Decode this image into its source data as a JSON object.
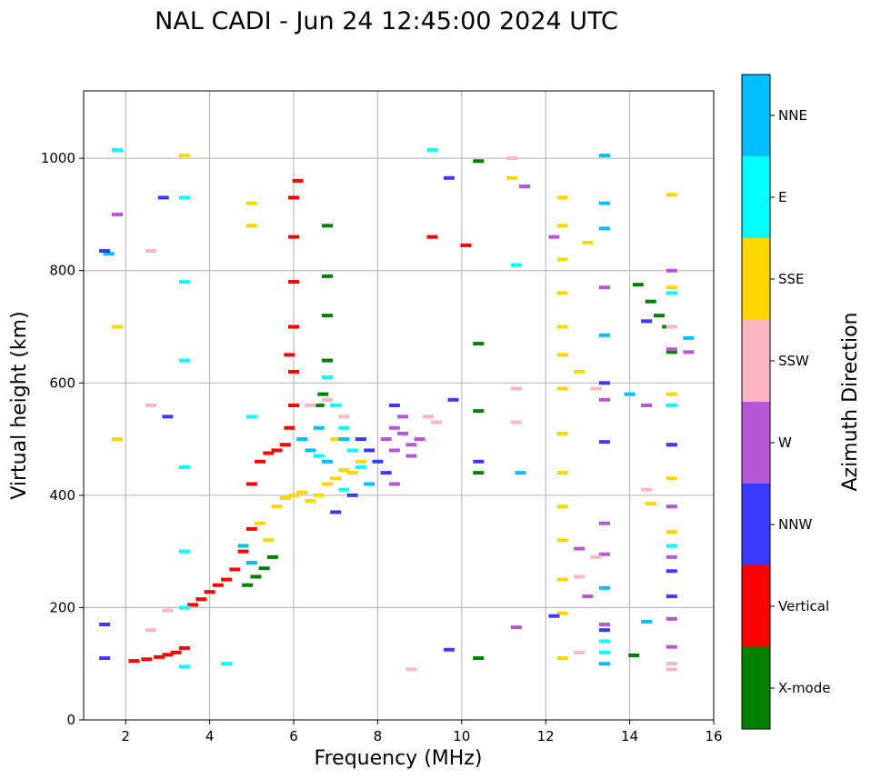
{
  "chart_data": {
    "type": "scatter",
    "title": "NAL CADI - Jun 24 12:45:00 2024 UTC",
    "xlabel": "Frequency (MHz)",
    "ylabel": "Virtual height (km)",
    "xlim": [
      1,
      16
    ],
    "ylim": [
      0,
      1120
    ],
    "xticks": [
      2,
      4,
      6,
      8,
      10,
      12,
      14,
      16
    ],
    "yticks": [
      0,
      200,
      400,
      600,
      800,
      1000
    ],
    "grid": true,
    "colorbar": {
      "label": "Azimuth Direction",
      "position": "right",
      "categories": [
        {
          "name": "X-mode",
          "color": "#008000"
        },
        {
          "name": "Vertical",
          "color": "#ff0000"
        },
        {
          "name": "NNW",
          "color": "#3a3aff"
        },
        {
          "name": "W",
          "color": "#b657d6"
        },
        {
          "name": "SSW",
          "color": "#ffb6c1"
        },
        {
          "name": "SSE",
          "color": "#ffd700"
        },
        {
          "name": "E",
          "color": "#00ffff"
        },
        {
          "name": "NNE",
          "color": "#00bfff"
        }
      ]
    },
    "series": [
      {
        "name": "Vertical",
        "color": "#ff0000",
        "points": [
          [
            2.2,
            105
          ],
          [
            2.5,
            108
          ],
          [
            2.8,
            112
          ],
          [
            3.0,
            116
          ],
          [
            3.2,
            120
          ],
          [
            3.4,
            128
          ],
          [
            3.6,
            205
          ],
          [
            3.8,
            215
          ],
          [
            4.0,
            228
          ],
          [
            4.2,
            240
          ],
          [
            4.4,
            250
          ],
          [
            4.6,
            268
          ],
          [
            4.8,
            300
          ],
          [
            5.0,
            340
          ],
          [
            5.0,
            420
          ],
          [
            5.2,
            460
          ],
          [
            5.4,
            475
          ],
          [
            5.6,
            480
          ],
          [
            5.8,
            490
          ],
          [
            5.9,
            520
          ],
          [
            6.0,
            560
          ],
          [
            6.0,
            620
          ],
          [
            6.0,
            700
          ],
          [
            6.0,
            780
          ],
          [
            6.0,
            860
          ],
          [
            6.0,
            930
          ],
          [
            6.1,
            960
          ],
          [
            5.9,
            650
          ],
          [
            10.1,
            845
          ],
          [
            9.3,
            860
          ]
        ]
      },
      {
        "name": "X-mode",
        "color": "#008000",
        "points": [
          [
            4.9,
            240
          ],
          [
            5.1,
            255
          ],
          [
            5.3,
            270
          ],
          [
            5.5,
            290
          ],
          [
            6.6,
            560
          ],
          [
            6.7,
            580
          ],
          [
            6.8,
            640
          ],
          [
            6.8,
            720
          ],
          [
            6.8,
            790
          ],
          [
            6.8,
            880
          ],
          [
            10.4,
            995
          ],
          [
            10.4,
            670
          ],
          [
            10.4,
            550
          ],
          [
            10.4,
            440
          ],
          [
            10.4,
            110
          ],
          [
            14.2,
            775
          ],
          [
            14.5,
            745
          ],
          [
            14.7,
            720
          ],
          [
            14.9,
            700
          ],
          [
            14.1,
            115
          ],
          [
            15.0,
            655
          ]
        ]
      },
      {
        "name": "SSE",
        "color": "#ffd700",
        "points": [
          [
            5.2,
            350
          ],
          [
            5.4,
            320
          ],
          [
            5.6,
            380
          ],
          [
            5.8,
            395
          ],
          [
            6.0,
            400
          ],
          [
            6.2,
            405
          ],
          [
            6.4,
            390
          ],
          [
            6.6,
            400
          ],
          [
            6.8,
            420
          ],
          [
            7.0,
            430
          ],
          [
            7.2,
            445
          ],
          [
            7.4,
            440
          ],
          [
            7.6,
            460
          ],
          [
            7.0,
            500
          ],
          [
            5.0,
            920
          ],
          [
            5.0,
            880
          ],
          [
            12.4,
            930
          ],
          [
            12.4,
            880
          ],
          [
            12.4,
            820
          ],
          [
            12.4,
            760
          ],
          [
            12.4,
            700
          ],
          [
            12.4,
            650
          ],
          [
            12.4,
            590
          ],
          [
            12.4,
            510
          ],
          [
            12.4,
            440
          ],
          [
            12.4,
            380
          ],
          [
            12.4,
            320
          ],
          [
            12.4,
            250
          ],
          [
            12.4,
            190
          ],
          [
            12.4,
            110
          ],
          [
            15.0,
            935
          ],
          [
            15.0,
            770
          ],
          [
            15.0,
            580
          ],
          [
            15.0,
            430
          ],
          [
            15.0,
            335
          ],
          [
            13.0,
            850
          ],
          [
            12.8,
            620
          ],
          [
            14.5,
            385
          ],
          [
            11.2,
            965
          ],
          [
            1.8,
            700
          ],
          [
            1.8,
            500
          ],
          [
            3.4,
            1005
          ]
        ]
      },
      {
        "name": "E",
        "color": "#00ffff",
        "points": [
          [
            6.8,
            610
          ],
          [
            7.0,
            560
          ],
          [
            7.2,
            520
          ],
          [
            7.4,
            480
          ],
          [
            7.6,
            450
          ],
          [
            7.2,
            410
          ],
          [
            6.6,
            470
          ],
          [
            3.4,
            930
          ],
          [
            3.4,
            780
          ],
          [
            3.4,
            640
          ],
          [
            3.4,
            450
          ],
          [
            3.4,
            300
          ],
          [
            3.4,
            200
          ],
          [
            3.4,
            95
          ],
          [
            4.4,
            100
          ],
          [
            15.0,
            760
          ],
          [
            15.0,
            560
          ],
          [
            15.0,
            380
          ],
          [
            15.0,
            310
          ],
          [
            15.0,
            100
          ],
          [
            13.4,
            120
          ],
          [
            13.4,
            140
          ],
          [
            11.3,
            810
          ],
          [
            9.3,
            1015
          ],
          [
            5.0,
            540
          ],
          [
            1.8,
            1015
          ]
        ]
      },
      {
        "name": "NNE",
        "color": "#00bfff",
        "points": [
          [
            6.2,
            500
          ],
          [
            6.4,
            480
          ],
          [
            6.6,
            520
          ],
          [
            6.8,
            460
          ],
          [
            7.2,
            500
          ],
          [
            7.8,
            420
          ],
          [
            4.8,
            310
          ],
          [
            5.0,
            280
          ],
          [
            13.4,
            1005
          ],
          [
            13.4,
            920
          ],
          [
            13.4,
            875
          ],
          [
            13.4,
            685
          ],
          [
            13.4,
            235
          ],
          [
            13.4,
            100
          ],
          [
            15.4,
            680
          ],
          [
            14.0,
            580
          ],
          [
            14.4,
            175
          ],
          [
            11.4,
            440
          ],
          [
            1.6,
            830
          ]
        ]
      },
      {
        "name": "W",
        "color": "#b657d6",
        "points": [
          [
            8.2,
            500
          ],
          [
            8.4,
            520
          ],
          [
            8.6,
            510
          ],
          [
            8.8,
            490
          ],
          [
            9.0,
            500
          ],
          [
            8.4,
            480
          ],
          [
            8.6,
            540
          ],
          [
            8.8,
            470
          ],
          [
            8.4,
            420
          ],
          [
            15.0,
            800
          ],
          [
            15.0,
            660
          ],
          [
            15.0,
            490
          ],
          [
            15.0,
            380
          ],
          [
            15.0,
            290
          ],
          [
            15.0,
            180
          ],
          [
            15.0,
            130
          ],
          [
            13.4,
            570
          ],
          [
            13.4,
            350
          ],
          [
            13.4,
            295
          ],
          [
            13.4,
            170
          ],
          [
            12.8,
            305
          ],
          [
            12.2,
            860
          ],
          [
            11.5,
            950
          ],
          [
            11.3,
            165
          ],
          [
            14.4,
            560
          ],
          [
            15.4,
            655
          ],
          [
            13.0,
            220
          ],
          [
            13.4,
            770
          ],
          [
            1.8,
            900
          ]
        ]
      },
      {
        "name": "NNW",
        "color": "#3a3aff",
        "points": [
          [
            7.6,
            500
          ],
          [
            7.8,
            480
          ],
          [
            8.0,
            460
          ],
          [
            8.2,
            440
          ],
          [
            8.4,
            560
          ],
          [
            7.4,
            400
          ],
          [
            7.0,
            370
          ],
          [
            13.4,
            600
          ],
          [
            13.4,
            495
          ],
          [
            13.4,
            160
          ],
          [
            15.0,
            220
          ],
          [
            15.0,
            265
          ],
          [
            15.0,
            490
          ],
          [
            14.4,
            710
          ],
          [
            10.4,
            460
          ],
          [
            9.8,
            570
          ],
          [
            9.7,
            965
          ],
          [
            1.5,
            835
          ],
          [
            1.5,
            170
          ],
          [
            1.5,
            110
          ],
          [
            2.9,
            930
          ],
          [
            3.0,
            540
          ],
          [
            9.7,
            125
          ],
          [
            12.2,
            185
          ]
        ]
      },
      {
        "name": "SSW",
        "color": "#ffb6c1",
        "points": [
          [
            6.4,
            560
          ],
          [
            6.8,
            570
          ],
          [
            7.2,
            540
          ],
          [
            9.2,
            540
          ],
          [
            9.4,
            530
          ],
          [
            11.3,
            530
          ],
          [
            11.3,
            590
          ],
          [
            12.8,
            120
          ],
          [
            12.8,
            255
          ],
          [
            13.2,
            290
          ],
          [
            13.2,
            590
          ],
          [
            14.4,
            410
          ],
          [
            15.0,
            90
          ],
          [
            15.0,
            100
          ],
          [
            15.0,
            700
          ],
          [
            2.6,
            160
          ],
          [
            2.6,
            835
          ],
          [
            2.6,
            560
          ],
          [
            8.8,
            90
          ],
          [
            3.0,
            195
          ],
          [
            11.2,
            1000
          ]
        ]
      }
    ]
  }
}
